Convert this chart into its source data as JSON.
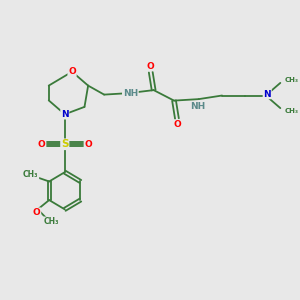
{
  "background_color": "#e8e8e8",
  "bond_color": "#3a7a3a",
  "atom_colors": {
    "O": "#ff0000",
    "N": "#0000cc",
    "S": "#cccc00",
    "H": "#5a8a8a",
    "C": "#3a7a3a"
  },
  "figsize": [
    3.0,
    3.0
  ],
  "dpi": 100,
  "xlim": [
    0,
    10
  ],
  "ylim": [
    0,
    10
  ]
}
